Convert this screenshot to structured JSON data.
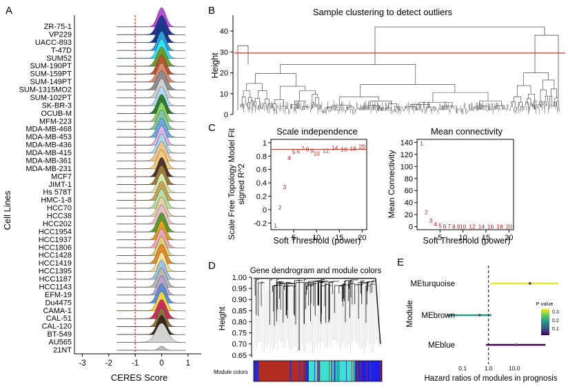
{
  "panel_letters": [
    "A",
    "B",
    "C",
    "D",
    "E"
  ],
  "chart_data": [
    {
      "panel": "A",
      "type": "ridgeline",
      "xlabel": "CERES Score",
      "ylabel": "Cell Lines",
      "xlim": [
        -3.3,
        1.5
      ],
      "xticks": [
        -3,
        -2,
        -1,
        0,
        1
      ],
      "reference_line": -1,
      "reference_color": "#c0392b",
      "cell_lines": [
        "ZR-75-1",
        "VP229",
        "UACC-893",
        "T-47D",
        "SUM52",
        "SUM-190PT",
        "SUM-159PT",
        "SUM-149PT",
        "SUM-1315MO2",
        "SUM-102PT",
        "SK-BR-3",
        "OCUB-M",
        "MFM-223",
        "MDA-MB-468",
        "MDA-MB-453",
        "MDA-MB-436",
        "MDA-MB-415",
        "MDA-MB-361",
        "MDA-MB-231",
        "MCF7",
        "JIMT-1",
        "Hs 578T",
        "HMC-1-8",
        "HCC70",
        "HCC38",
        "HCC202",
        "HCC1954",
        "HCC1937",
        "HCC1806",
        "HCC1428",
        "HCC1419",
        "HCC1395",
        "HCC1187",
        "HCC1143",
        "EFM-19",
        "Du4475",
        "CAMA-1",
        "CAL-51",
        "CAL-120",
        "BT-549",
        "AU565",
        "21NT"
      ],
      "colors": [
        "#b84fd6",
        "#253494",
        "#16378a",
        "#2c9fd4",
        "#35e2f2",
        "#6e9b2f",
        "#b5562d",
        "#d5886f",
        "#8e8e8e",
        "#cfcfcf",
        "#b1d9f0",
        "#2e7d32",
        "#8fd16a",
        "#7fc7a0",
        "#6fa8dc",
        "#d9b0e8",
        "#a8d8ea",
        "#f2c48d",
        "#f4c97a",
        "#4e342e",
        "#9c7b3a",
        "#d6e9a8",
        "#c7a35a",
        "#b5dfa0",
        "#e6d2a6",
        "#e8c1c8",
        "#5b9a2e",
        "#e0a020",
        "#e8a7b2",
        "#dcd07a",
        "#e38b2c",
        "#f0e09a",
        "#9cc5e8",
        "#b5b5b5",
        "#b9a6cf",
        "#5a8fd0",
        "#f0d34c",
        "#c92d5c",
        "#8c6d3d",
        "#3a2a1a",
        "#d2d2d2",
        "#bbbbbb"
      ],
      "peaks": [
        0,
        0,
        0,
        0,
        0,
        0,
        0,
        0,
        0,
        0,
        0,
        0,
        0,
        0,
        0,
        0,
        0,
        0,
        0,
        0,
        0,
        0,
        0,
        0,
        0,
        0,
        0,
        0,
        0,
        0,
        0,
        0,
        0,
        0,
        0,
        0,
        0,
        0,
        0,
        0,
        0,
        0
      ],
      "widths": [
        0.16,
        0.18,
        0.17,
        0.16,
        0.17,
        0.18,
        0.17,
        0.18,
        0.19,
        0.17,
        0.16,
        0.17,
        0.16,
        0.17,
        0.17,
        0.16,
        0.16,
        0.18,
        0.17,
        0.16,
        0.17,
        0.16,
        0.17,
        0.17,
        0.16,
        0.17,
        0.17,
        0.16,
        0.17,
        0.16,
        0.17,
        0.16,
        0.16,
        0.17,
        0.16,
        0.17,
        0.17,
        0.18,
        0.16,
        0.17,
        0.22,
        0.12
      ]
    },
    {
      "panel": "B",
      "type": "dendrogram",
      "title": "Sample clustering to detect outliers",
      "ylabel": "Height",
      "ylim": [
        0,
        45
      ],
      "yticks": [
        0,
        10,
        20,
        30,
        40
      ],
      "cut_height": 29.5,
      "cut_color": "#c0392b",
      "n_leaves": 1100
    },
    {
      "panel": "C1",
      "type": "scatter-text",
      "title": "Scale independence",
      "xlabel": "Soft Threshold (power)",
      "ylabel": "Scale Free Topology Model Fit, signed R^2",
      "xlim": [
        0,
        21
      ],
      "ylim": [
        -0.3,
        1.05
      ],
      "xticks": [
        5,
        10,
        15,
        20
      ],
      "yticks": [
        -0.2,
        0.0,
        0.2,
        0.4,
        0.6,
        0.8,
        1.0
      ],
      "hline": 0.9,
      "labels": [
        "1",
        "2",
        "3",
        "4",
        "5",
        "6",
        "7",
        "8",
        "9",
        "10",
        "12",
        "14",
        "16",
        "18",
        "20"
      ],
      "x": [
        1,
        2,
        3,
        4,
        5,
        6,
        7,
        8,
        9,
        10,
        12,
        14,
        16,
        18,
        20
      ],
      "y": [
        -0.24,
        0.03,
        0.34,
        0.77,
        0.86,
        0.87,
        0.91,
        0.9,
        0.88,
        0.84,
        0.88,
        0.92,
        0.9,
        0.91,
        0.94
      ],
      "point_color": "#b22222"
    },
    {
      "panel": "C2",
      "type": "scatter-text",
      "title": "Mean connectivity",
      "xlabel": "Soft Threshold (power)",
      "ylabel": "Mean Connectivity",
      "xlim": [
        0,
        21
      ],
      "ylim": [
        -5,
        145
      ],
      "xticks": [
        5,
        10,
        15,
        20
      ],
      "yticks": [
        0,
        20,
        40,
        60,
        80,
        100,
        120,
        140
      ],
      "labels": [
        "1",
        "2",
        "3",
        "4",
        "5",
        "6",
        "7",
        "8",
        "9",
        "10",
        "12",
        "14",
        "16",
        "18",
        "20"
      ],
      "x": [
        1,
        2,
        3,
        4,
        5,
        6,
        7,
        8,
        9,
        10,
        12,
        14,
        16,
        18,
        20
      ],
      "y": [
        138,
        24,
        10,
        4,
        2,
        1,
        0.5,
        0.4,
        0.3,
        0.2,
        0.1,
        0.1,
        0,
        0,
        0
      ],
      "point_color": "#b22222"
    },
    {
      "panel": "D",
      "type": "dendrogram",
      "title": "Gene dendrogram and module colors",
      "ylabel": "Height",
      "ylim": [
        0.64,
        1.0
      ],
      "yticks": [
        0.65,
        0.7,
        0.75,
        0.8,
        0.85,
        0.9,
        0.95,
        1.0
      ],
      "colorbar_label": "Module colors",
      "module_colors": [
        "#2c2cc4",
        "#b32c22",
        "#b32c22",
        "#2c2cc4",
        "#40e0d0",
        "#40e0d0",
        "#2c2cc4",
        "#1e1ee6"
      ],
      "segment_widths": [
        0.04,
        0.13,
        0.22,
        0.04,
        0.22,
        0.14,
        0.05,
        0.16
      ]
    },
    {
      "panel": "E",
      "type": "forest",
      "xlabel": "Hazard ratios of modules in prognosis",
      "ylabel": "Module",
      "xscale": "log",
      "xlim": [
        0.02,
        500
      ],
      "xticks": [
        0.1,
        1.0,
        10.0
      ],
      "xtick_labels": [
        "0.1",
        "1.0",
        "10.0"
      ],
      "reference": 1,
      "modules": [
        "MEturquoise",
        "MEbrown",
        "MEblue"
      ],
      "hr": [
        40,
        0.45,
        12
      ],
      "lower": [
        1.2,
        0.025,
        0.8
      ],
      "upper": [
        500,
        1.3,
        160
      ],
      "pvalues": [
        0.32,
        0.18,
        0.02
      ],
      "legend_title": "P value",
      "legend_ticks": [
        0.1,
        0.2,
        0.3
      ],
      "colormap": [
        "#440154",
        "#3b528b",
        "#21918c",
        "#5ec962",
        "#fde725"
      ]
    }
  ]
}
